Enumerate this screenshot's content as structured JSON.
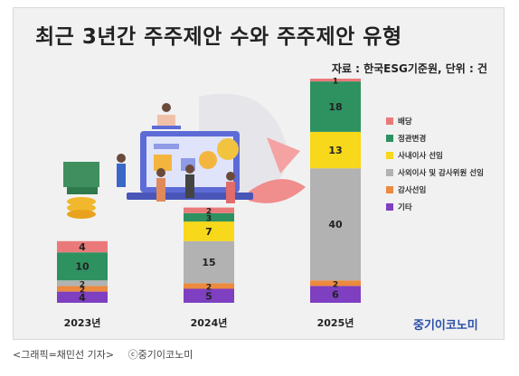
{
  "title": "최근 3년간 주주제안 수와 주주제안 유형",
  "source": "자료 : 한국ESG기준원, 단위 : 건",
  "brand": "중기이코노미",
  "caption": {
    "credit": "<그래픽=채민선 기자>",
    "copyright": "ⓒ중기이코노미"
  },
  "colors": {
    "배당": "#ea7a7a",
    "정관변경": "#2e9160",
    "사내이사 선임": "#f7d81a",
    "사외이사 및 감사위원 선임": "#b2b2b2",
    "감사선임": "#ec8a3f",
    "기타": "#7e3fc1"
  },
  "chart_data": {
    "type": "bar",
    "stacked": true,
    "categories": [
      "2023년",
      "2024년",
      "2025년"
    ],
    "series": [
      {
        "name": "기타",
        "values": [
          4,
          5,
          6
        ]
      },
      {
        "name": "감사선임",
        "values": [
          2,
          2,
          2
        ]
      },
      {
        "name": "사외이사 및 감사위원 선임",
        "values": [
          2,
          15,
          40
        ]
      },
      {
        "name": "사내이사 선임",
        "values": [
          0,
          7,
          13
        ]
      },
      {
        "name": "정관변경",
        "values": [
          10,
          3,
          18
        ]
      },
      {
        "name": "배당",
        "values": [
          4,
          2,
          1
        ]
      }
    ],
    "legend": [
      "배당",
      "정관변경",
      "사내이사 선임",
      "사외이사 및 감사위원 선임",
      "감사선임",
      "기타"
    ],
    "legend_position": "right",
    "ylim": [
      0,
      80
    ],
    "grid": false
  }
}
